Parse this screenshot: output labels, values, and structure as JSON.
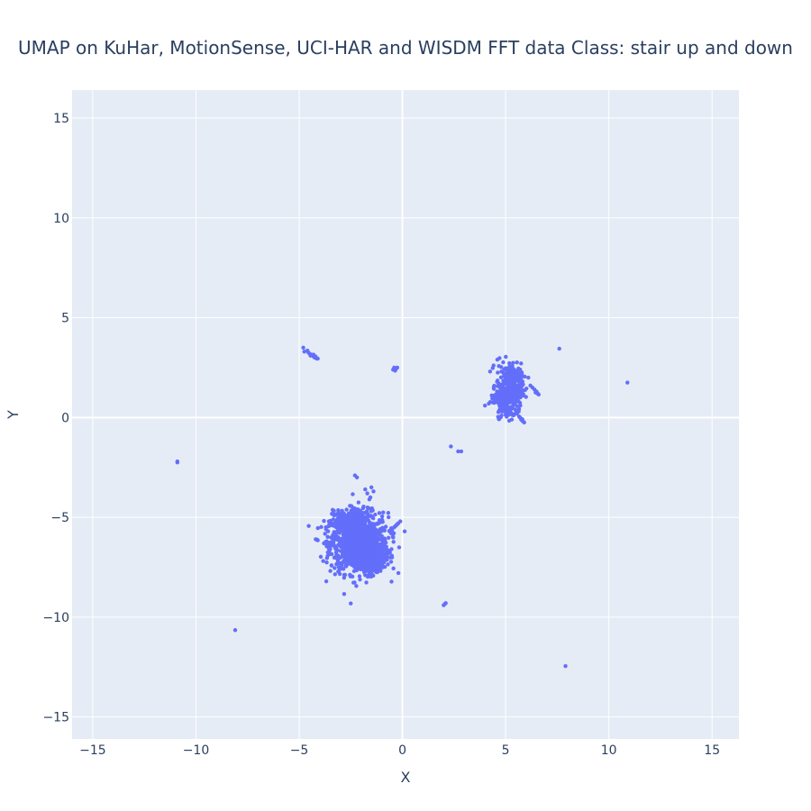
{
  "chart_data": {
    "type": "scatter",
    "title": "UMAP on KuHar, MotionSense, UCI-HAR and WISDM   FFT data   Class: stair up and down",
    "xlabel": "X",
    "ylabel": "Y",
    "xlim": [
      -16,
      16.3
    ],
    "ylim": [
      -16.1,
      16.4
    ],
    "xticks": [
      -15,
      -10,
      -5,
      0,
      5,
      10,
      15
    ],
    "yticks": [
      -15,
      -10,
      -5,
      0,
      5,
      10,
      15
    ],
    "grid": true,
    "colors": {
      "marker": "#636efa",
      "plot_bg": "#e5ecf6",
      "grid": "#ffffff",
      "text": "#2a3f5f"
    },
    "series": [
      {
        "name": "",
        "points": [
          [
            -10.9,
            -2.2
          ],
          [
            -10.9,
            -2.25
          ],
          [
            -8.1,
            -10.65
          ],
          [
            7.9,
            -12.45
          ],
          [
            10.9,
            1.75
          ],
          [
            7.6,
            3.45
          ],
          [
            2.05,
            -9.35
          ],
          [
            2.1,
            -9.3
          ],
          [
            2.0,
            -9.4
          ],
          [
            2.35,
            -1.45
          ],
          [
            2.7,
            -1.7
          ],
          [
            2.85,
            -1.7
          ],
          [
            -4.8,
            3.5
          ],
          [
            -4.75,
            3.3
          ],
          [
            -4.6,
            3.35
          ],
          [
            -4.55,
            3.25
          ],
          [
            -4.5,
            3.2
          ],
          [
            -4.4,
            3.15
          ],
          [
            -4.35,
            3.1
          ],
          [
            -4.3,
            3.05
          ],
          [
            -4.25,
            3.0
          ],
          [
            -4.2,
            3.05
          ],
          [
            -4.15,
            2.95
          ],
          [
            -4.1,
            2.95
          ],
          [
            -4.45,
            3.1
          ],
          [
            -4.3,
            3.15
          ],
          [
            -0.45,
            2.4
          ],
          [
            -0.4,
            2.5
          ],
          [
            -0.3,
            2.45
          ],
          [
            -0.25,
            2.5
          ],
          [
            -0.35,
            2.35
          ],
          [
            -2.3,
            -2.9
          ],
          [
            -2.2,
            -3.0
          ],
          [
            -1.8,
            -3.6
          ],
          [
            -1.7,
            -3.8
          ],
          [
            -1.5,
            -3.5
          ],
          [
            -1.4,
            -3.7
          ],
          [
            -1.55,
            -4.0
          ],
          [
            -1.6,
            -4.1
          ],
          [
            -0.1,
            -5.2
          ],
          [
            -0.2,
            -5.3
          ],
          [
            -0.3,
            -5.4
          ],
          [
            -0.4,
            -5.5
          ],
          [
            -0.5,
            -5.6
          ],
          [
            -0.55,
            -5.8
          ],
          [
            -0.5,
            -5.7
          ],
          [
            -0.35,
            -5.45
          ],
          [
            -0.25,
            -5.35
          ],
          [
            -4.2,
            -6.1
          ],
          [
            -4.1,
            -6.15
          ],
          [
            -3.8,
            -6.3
          ],
          [
            -3.7,
            -6.35
          ],
          [
            -3.6,
            -6.4
          ],
          [
            -3.5,
            -6.45
          ],
          [
            -3.4,
            -6.4
          ],
          [
            -3.3,
            -6.45
          ],
          [
            -3.2,
            -6.5
          ],
          [
            -3.7,
            -5.6
          ],
          [
            -3.6,
            -5.7
          ],
          [
            4.0,
            0.6
          ],
          [
            4.5,
            1.0
          ],
          [
            4.6,
            2.9
          ],
          [
            4.8,
            0.1
          ],
          [
            4.85,
            0.3
          ],
          [
            5.3,
            -0.1
          ],
          [
            6.1,
            2.0
          ],
          [
            6.2,
            1.6
          ],
          [
            6.3,
            1.5
          ],
          [
            6.4,
            1.4
          ],
          [
            6.5,
            1.3
          ],
          [
            6.55,
            1.2
          ],
          [
            6.6,
            1.15
          ],
          [
            6.45,
            1.25
          ],
          [
            5.7,
            0.0
          ],
          [
            5.75,
            -0.1
          ],
          [
            5.8,
            -0.15
          ],
          [
            5.85,
            -0.2
          ],
          [
            5.9,
            -0.25
          ],
          [
            5.65,
            0.05
          ],
          [
            5.55,
            0.2
          ],
          [
            5.5,
            0.35
          ]
        ],
        "clusters": [
          {
            "center": [
              -2.1,
              -6.3
            ],
            "spread": [
              0.7,
              0.75
            ],
            "count": 950
          },
          {
            "center": [
              -2.9,
              -5.3
            ],
            "spread": [
              0.3,
              0.3
            ],
            "count": 120
          },
          {
            "center": [
              -1.2,
              -6.8
            ],
            "spread": [
              0.25,
              0.4
            ],
            "count": 120
          },
          {
            "center": [
              -1.8,
              -7.3
            ],
            "spread": [
              0.35,
              0.25
            ],
            "count": 120
          },
          {
            "center": [
              -2.2,
              -4.9
            ],
            "spread": [
              0.25,
              0.25
            ],
            "count": 60
          },
          {
            "center": [
              5.15,
              1.6
            ],
            "spread": [
              0.3,
              0.55
            ],
            "count": 260
          },
          {
            "center": [
              4.85,
              1.0
            ],
            "spread": [
              0.2,
              0.2
            ],
            "count": 60
          },
          {
            "center": [
              5.5,
              2.0
            ],
            "spread": [
              0.25,
              0.2
            ],
            "count": 60
          },
          {
            "center": [
              5.1,
              0.35
            ],
            "spread": [
              0.25,
              0.2
            ],
            "count": 60
          },
          {
            "center": [
              5.6,
              1.2
            ],
            "spread": [
              0.15,
              0.25
            ],
            "count": 40
          }
        ]
      }
    ]
  }
}
